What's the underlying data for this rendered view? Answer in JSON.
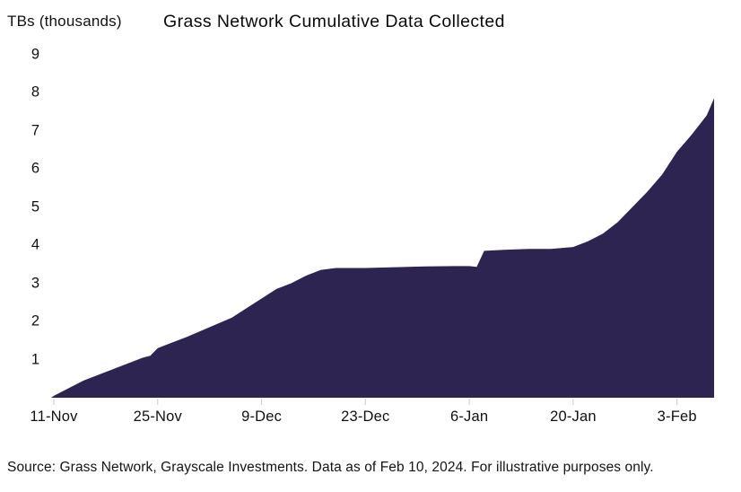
{
  "chart_data": {
    "type": "area",
    "title": "Grass Network Cumulative Data Collected",
    "ylabel": "TBs (thousands)",
    "xlabel": "",
    "ylim": [
      0,
      9.5
    ],
    "grid": false,
    "legend": "none",
    "fill_color": "#2e2451",
    "tick_color": "#c9c9c9",
    "y_ticks": [
      9,
      8,
      7,
      6,
      5,
      4,
      3,
      2,
      1
    ],
    "x_ticks": [
      {
        "label": "11-Nov",
        "day": 0
      },
      {
        "label": "25-Nov",
        "day": 14
      },
      {
        "label": "9-Dec",
        "day": 28
      },
      {
        "label": "23-Dec",
        "day": 42
      },
      {
        "label": "6-Jan",
        "day": 56
      },
      {
        "label": "20-Jan",
        "day": 70
      },
      {
        "label": "3-Feb",
        "day": 84
      }
    ],
    "series": [
      {
        "name": "Cumulative data collected (TBs, thousands)",
        "points": [
          {
            "day": 0,
            "date": "11-Nov",
            "value": 0.05
          },
          {
            "day": 2,
            "date": "13-Nov",
            "value": 0.25
          },
          {
            "day": 4,
            "date": "15-Nov",
            "value": 0.45
          },
          {
            "day": 6,
            "date": "17-Nov",
            "value": 0.6
          },
          {
            "day": 8,
            "date": "19-Nov",
            "value": 0.75
          },
          {
            "day": 10,
            "date": "21-Nov",
            "value": 0.9
          },
          {
            "day": 12,
            "date": "23-Nov",
            "value": 1.05
          },
          {
            "day": 13,
            "date": "24-Nov",
            "value": 1.1
          },
          {
            "day": 14,
            "date": "25-Nov",
            "value": 1.3
          },
          {
            "day": 16,
            "date": "27-Nov",
            "value": 1.45
          },
          {
            "day": 18,
            "date": "29-Nov",
            "value": 1.6
          },
          {
            "day": 21,
            "date": "2-Dec",
            "value": 1.85
          },
          {
            "day": 24,
            "date": "5-Dec",
            "value": 2.1
          },
          {
            "day": 26,
            "date": "7-Dec",
            "value": 2.35
          },
          {
            "day": 28,
            "date": "9-Dec",
            "value": 2.6
          },
          {
            "day": 30,
            "date": "11-Dec",
            "value": 2.85
          },
          {
            "day": 32,
            "date": "13-Dec",
            "value": 3.0
          },
          {
            "day": 34,
            "date": "15-Dec",
            "value": 3.2
          },
          {
            "day": 36,
            "date": "17-Dec",
            "value": 3.35
          },
          {
            "day": 38,
            "date": "19-Dec",
            "value": 3.4
          },
          {
            "day": 42,
            "date": "23-Dec",
            "value": 3.4
          },
          {
            "day": 46,
            "date": "27-Dec",
            "value": 3.42
          },
          {
            "day": 50,
            "date": "31-Dec",
            "value": 3.44
          },
          {
            "day": 54,
            "date": "4-Jan",
            "value": 3.45
          },
          {
            "day": 56,
            "date": "6-Jan",
            "value": 3.45
          },
          {
            "day": 57,
            "date": "7-Jan",
            "value": 3.43
          },
          {
            "day": 58,
            "date": "8-Jan",
            "value": 3.85
          },
          {
            "day": 61,
            "date": "11-Jan",
            "value": 3.88
          },
          {
            "day": 64,
            "date": "14-Jan",
            "value": 3.9
          },
          {
            "day": 67,
            "date": "17-Jan",
            "value": 3.9
          },
          {
            "day": 70,
            "date": "20-Jan",
            "value": 3.95
          },
          {
            "day": 72,
            "date": "22-Jan",
            "value": 4.1
          },
          {
            "day": 74,
            "date": "24-Jan",
            "value": 4.3
          },
          {
            "day": 76,
            "date": "26-Jan",
            "value": 4.6
          },
          {
            "day": 78,
            "date": "28-Jan",
            "value": 5.0
          },
          {
            "day": 80,
            "date": "30-Jan",
            "value": 5.4
          },
          {
            "day": 82,
            "date": "1-Feb",
            "value": 5.85
          },
          {
            "day": 84,
            "date": "3-Feb",
            "value": 6.45
          },
          {
            "day": 86,
            "date": "5-Feb",
            "value": 6.9
          },
          {
            "day": 88,
            "date": "7-Feb",
            "value": 7.4
          },
          {
            "day": 89,
            "date": "8-Feb",
            "value": 7.85
          }
        ]
      }
    ]
  },
  "footer": {
    "source": "Source: Grass Network, Grayscale Investments. Data as of Feb 10, 2024. For illustrative purposes only."
  }
}
